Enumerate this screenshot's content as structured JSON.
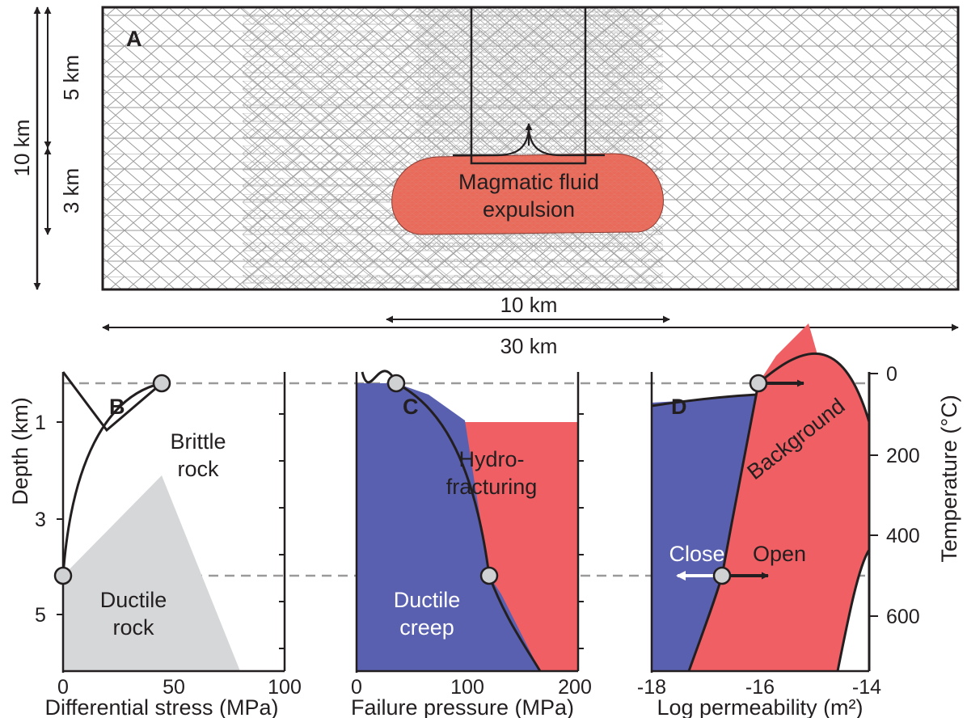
{
  "panel_a": {
    "letter": "A",
    "magma_label_line1": "Magmatic fluid",
    "magma_label_line2": "expulsion",
    "scale_10km_horizontal": "10 km",
    "scale_30km": "30 km",
    "scale_10km_vertical": "10 km",
    "scale_5km": "5 km",
    "scale_3km": "3 km"
  },
  "panel_b": {
    "letter": "B",
    "brittle_line1": "Brittle",
    "brittle_line2": "rock",
    "ductile_line1": "Ductile",
    "ductile_line2": "rock",
    "xlabel": "Differential stress (MPa)",
    "ylabel": "Depth (km)",
    "xticks": [
      "0",
      "50",
      "100"
    ],
    "yticks": [
      "1",
      "3",
      "5"
    ]
  },
  "panel_c": {
    "letter": "C",
    "hydro_line1": "Hydro-",
    "hydro_line2": "fracturing",
    "creep_line1": "Ductile",
    "creep_line2": "creep",
    "xlabel": "Failure pressure (MPa)",
    "xticks": [
      "0",
      "100",
      "200"
    ]
  },
  "panel_d": {
    "letter": "D",
    "background_label": "Background",
    "close_label": "Close",
    "open_label": "Open",
    "xlabel": "Log permeability (m²)",
    "xticks": [
      "-18",
      "-16",
      "-14"
    ],
    "ylabel_right": "Temperature (°C)",
    "yticks_right": [
      "0",
      "200",
      "400",
      "600"
    ]
  },
  "colors": {
    "magma": "#ea6a5a",
    "hydrofracturing": "#ef5f63",
    "ductile_creep": "#5a60b0",
    "ductile_rock": "#d6d7d9",
    "mesh": "#9a9a9a",
    "node": "#d0d1d3"
  },
  "icons": [
    "double-arrow",
    "upward-arrow",
    "right-arrow",
    "left-arrow",
    "circle-marker"
  ]
}
